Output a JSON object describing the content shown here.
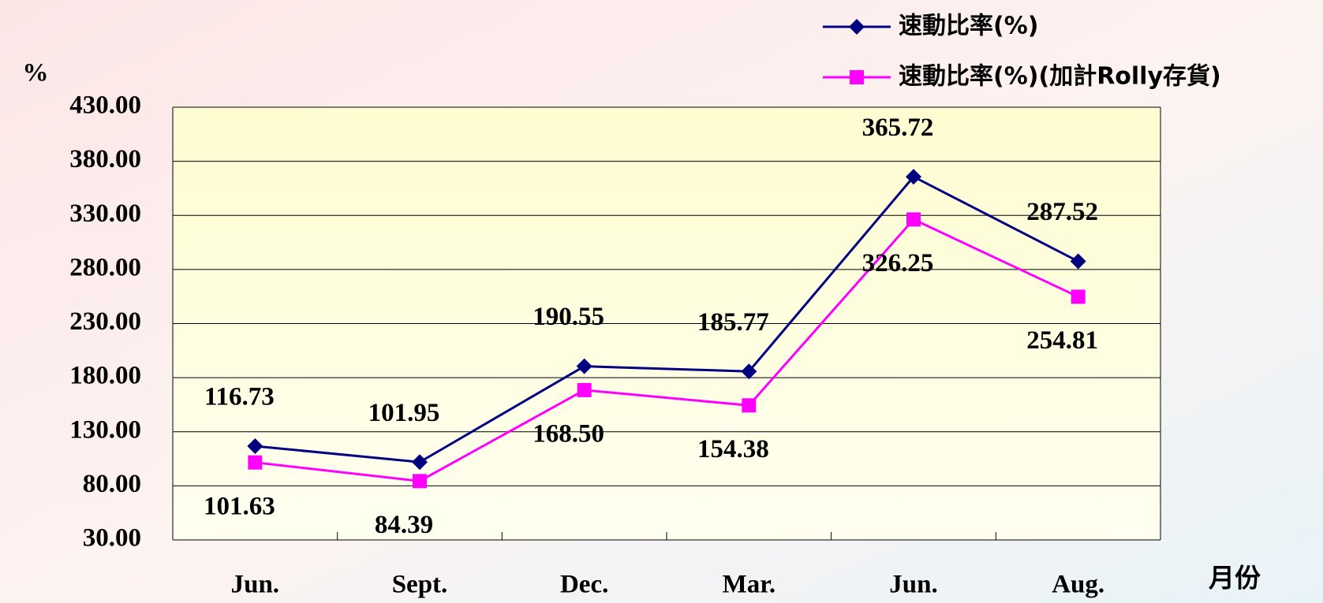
{
  "chart_data": {
    "type": "line",
    "categories": [
      "Jun.",
      "Sept.",
      "Dec.",
      "Mar.",
      "Jun.",
      "Aug."
    ],
    "x_label": "月份",
    "y_label": "%",
    "series": [
      {
        "name": "速動比率(%)",
        "color": "#000080",
        "marker": "diamond",
        "values": [
          116.73,
          101.95,
          190.55,
          185.77,
          365.72,
          287.52
        ],
        "value_labels": [
          "116.73",
          "101.95",
          "190.55",
          "185.77",
          "365.72",
          "287.52"
        ]
      },
      {
        "name": "速動比率(%)(加計Rolly存貨)",
        "color": "#ff00ff",
        "marker": "square",
        "values": [
          101.63,
          84.39,
          168.5,
          154.38,
          326.25,
          254.81
        ],
        "value_labels": [
          "101.63",
          "84.39",
          "168.50",
          "154.38",
          "326.25",
          "254.81"
        ]
      }
    ],
    "ylim": [
      30,
      430
    ],
    "yticks": [
      {
        "value": 30,
        "label": "30.00"
      },
      {
        "value": 80,
        "label": "80.00"
      },
      {
        "value": 130,
        "label": "130.00"
      },
      {
        "value": 180,
        "label": "180.00"
      },
      {
        "value": 230,
        "label": "230.00"
      },
      {
        "value": 280,
        "label": "280.00"
      },
      {
        "value": 330,
        "label": "330.00"
      },
      {
        "value": 380,
        "label": "380.00"
      },
      {
        "value": 430,
        "label": "430.00"
      }
    ],
    "grid": true,
    "legend": "top-right"
  }
}
